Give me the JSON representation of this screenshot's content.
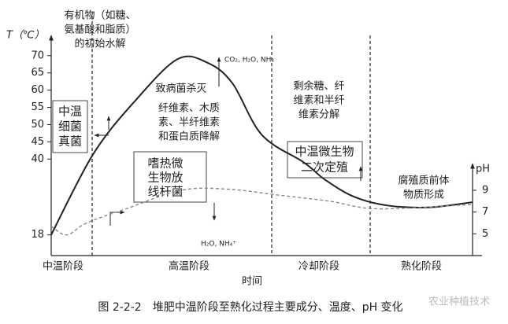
{
  "chart_data": {
    "type": "line",
    "title": "图 2-2-2　堆肥中温阶段至熟化过程主要成分、温度、pH 变化",
    "y_label": "T（℃）",
    "y2_label": "pH",
    "x_label": "时间",
    "xlim": [
      0,
      100
    ],
    "ylim": [
      12,
      72
    ],
    "yticks": [
      18,
      40,
      45,
      50,
      55,
      60,
      65,
      70
    ],
    "y2lim": [
      3,
      22
    ],
    "y2ticks": [
      5,
      7,
      9
    ],
    "phases": [
      "中温阶段",
      "高温阶段",
      "冷却阶段",
      "熟化阶段"
    ],
    "series": [
      {
        "name": "温度",
        "color": "#222222",
        "style": "solid",
        "x": [
          0,
          10,
          20,
          30,
          37,
          43,
          50,
          60,
          65,
          72,
          80,
          90,
          100
        ],
        "values": [
          18,
          41.5,
          57,
          69,
          68,
          62,
          47,
          39,
          34,
          29,
          26.5,
          26,
          27.5
        ]
      },
      {
        "name": "pH",
        "color": "#888888",
        "style": "dashed",
        "axis": "y2",
        "x": [
          0,
          3.7,
          8.4,
          17.8,
          30.8,
          42,
          53,
          66,
          77.6,
          100
        ],
        "values": [
          5.7,
          4.9,
          6.0,
          7.3,
          9.0,
          9.1,
          8.6,
          8.0,
          7.3,
          7.7
        ]
      }
    ],
    "annotations": [
      [
        "有机物（如糖、",
        "氨基酸和脂质）",
        "的初始水解"
      ],
      [
        "CO₂, H₂O, NH₃"
      ],
      [
        "致病菌杀灭"
      ],
      [
        "纤维素、木质",
        "素、半纤维素",
        "和蛋白质降解"
      ],
      [
        "剩余糖、纤",
        "维素和半纤",
        "维素分解"
      ],
      [
        "中温",
        "细菌",
        "真菌"
      ],
      [
        "嗜热微",
        "生物放",
        "线杆菌"
      ],
      [
        "中温微生物",
        "二次定殖"
      ],
      [
        "腐殖质前体",
        "物质形成"
      ],
      [
        "H₂O, NH₄⁺"
      ]
    ],
    "watermark": "农业种植技术"
  }
}
